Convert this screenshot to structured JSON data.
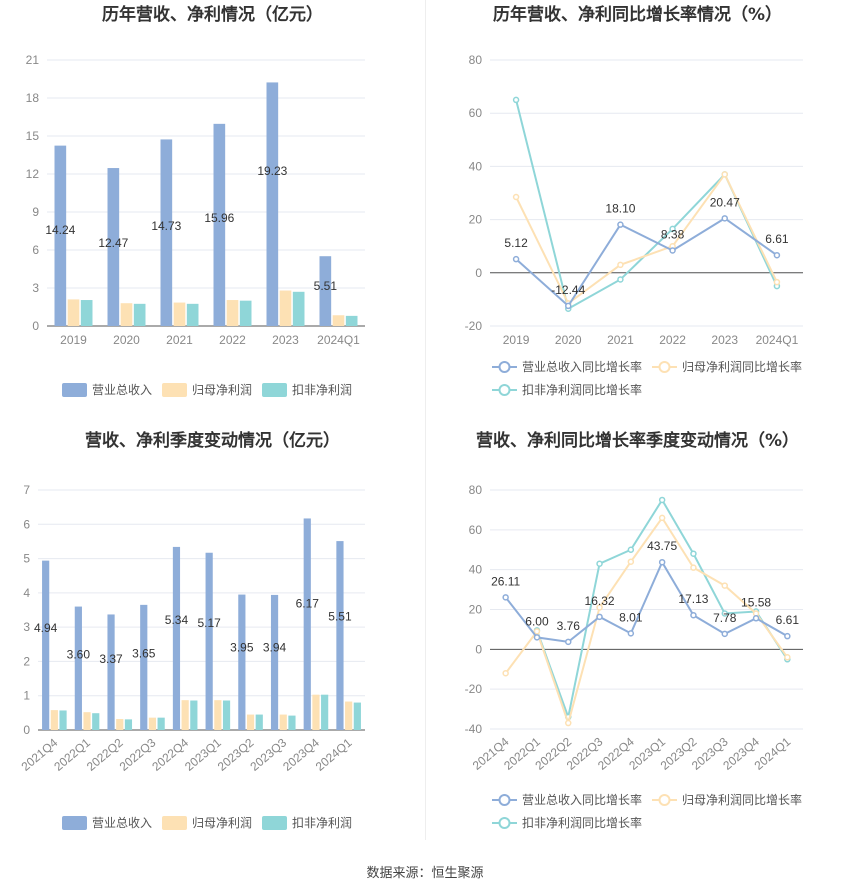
{
  "colors": {
    "revenue": "#8eadd9",
    "parent_profit": "#fde1b4",
    "deducted_profit": "#8fd6d8",
    "grid": "#e6e9f0",
    "axis": "#555555"
  },
  "source": "数据来源：恒生聚源",
  "chart_data": [
    {
      "type": "bar",
      "title": "历年营收、净利情况（亿元）",
      "categories": [
        "2019",
        "2020",
        "2021",
        "2022",
        "2023",
        "2024Q1"
      ],
      "yticks": [
        "0",
        "3",
        "6",
        "9",
        "12",
        "15",
        "18",
        "21"
      ],
      "ylim": [
        0,
        21
      ],
      "series": [
        {
          "name": "营业总收入",
          "values": [
            14.24,
            12.47,
            14.73,
            15.96,
            19.23,
            5.51
          ],
          "labels": [
            "14.24",
            "12.47",
            "14.73",
            "15.96",
            "19.23",
            "5.51"
          ]
        },
        {
          "name": "归母净利润",
          "values": [
            2.1,
            1.8,
            1.85,
            2.05,
            2.8,
            0.85
          ]
        },
        {
          "name": "扣非净利润",
          "values": [
            2.05,
            1.75,
            1.75,
            2.0,
            2.7,
            0.8
          ]
        }
      ],
      "legend": "bottom"
    },
    {
      "type": "line",
      "title": "历年营收、净利同比增长率情况（%）",
      "categories": [
        "2019",
        "2020",
        "2021",
        "2022",
        "2023",
        "2024Q1"
      ],
      "yticks": [
        "-20",
        "0",
        "20",
        "40",
        "60",
        "80"
      ],
      "ylim": [
        -20,
        80
      ],
      "series": [
        {
          "name": "营业总收入同比增长率",
          "values": [
            5.12,
            -12.44,
            18.1,
            8.38,
            20.47,
            6.61
          ],
          "labels": [
            "5.12",
            "-12.44",
            "18.10",
            "8.38",
            "20.47",
            "6.61"
          ]
        },
        {
          "name": "归母净利润同比增长率",
          "values": [
            28.5,
            -11.5,
            3.0,
            10.0,
            37.0,
            -3.5
          ]
        },
        {
          "name": "扣非净利润同比增长率",
          "values": [
            65.0,
            -13.5,
            -2.5,
            16.5,
            37.0,
            -5.0
          ]
        }
      ],
      "legend": "bottom"
    },
    {
      "type": "bar",
      "title": "营收、净利季度变动情况（亿元）",
      "categories": [
        "2021Q4",
        "2022Q1",
        "2022Q2",
        "2022Q3",
        "2022Q4",
        "2023Q1",
        "2023Q2",
        "2023Q3",
        "2023Q4",
        "2024Q1"
      ],
      "yticks": [
        "0",
        "1",
        "2",
        "3",
        "4",
        "5",
        "6",
        "7"
      ],
      "ylim": [
        0,
        7
      ],
      "series": [
        {
          "name": "营业总收入",
          "values": [
            4.94,
            3.6,
            3.37,
            3.65,
            5.34,
            5.17,
            3.95,
            3.94,
            6.17,
            5.51
          ],
          "labels": [
            "4.94",
            "3.60",
            "3.37",
            "3.65",
            "5.34",
            "5.17",
            "3.95",
            "3.94",
            "6.17",
            "5.51"
          ]
        },
        {
          "name": "归母净利润",
          "values": [
            0.58,
            0.52,
            0.32,
            0.36,
            0.87,
            0.87,
            0.45,
            0.45,
            1.03,
            0.83
          ]
        },
        {
          "name": "扣非净利润",
          "values": [
            0.57,
            0.49,
            0.31,
            0.36,
            0.86,
            0.86,
            0.45,
            0.42,
            1.03,
            0.8
          ]
        }
      ],
      "legend": "bottom"
    },
    {
      "type": "line",
      "title": "营收、净利同比增长率季度变动情况（%）",
      "categories": [
        "2021Q4",
        "2022Q1",
        "2022Q2",
        "2022Q3",
        "2022Q4",
        "2023Q1",
        "2023Q2",
        "2023Q3",
        "2023Q4",
        "2024Q1"
      ],
      "yticks": [
        "-40",
        "-20",
        "0",
        "20",
        "40",
        "60",
        "80"
      ],
      "ylim": [
        -40,
        80
      ],
      "series": [
        {
          "name": "营业总收入同比增长率",
          "values": [
            26.11,
            6.0,
            3.76,
            16.32,
            8.01,
            43.75,
            17.13,
            7.78,
            15.58,
            6.61
          ],
          "labels": [
            "26.11",
            "6.00",
            "3.76",
            "16.32",
            "8.01",
            "43.75",
            "17.13",
            "7.78",
            "15.58",
            "6.61"
          ]
        },
        {
          "name": "归母净利润同比增长率",
          "values": [
            -12.0,
            9.0,
            -37.0,
            21.0,
            44.0,
            66.0,
            41.0,
            32.0,
            18.0,
            -4.0
          ]
        },
        {
          "name": "扣非净利润同比增长率",
          "values": [
            null,
            9.5,
            -34.0,
            43.0,
            50.0,
            75.0,
            48.0,
            18.0,
            19.0,
            -5.0
          ]
        }
      ],
      "legend": "bottom"
    }
  ]
}
